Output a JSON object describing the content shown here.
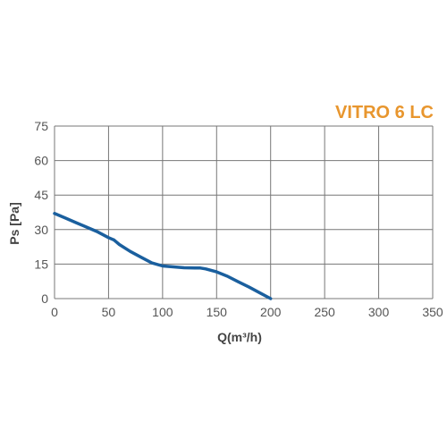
{
  "chart_data": {
    "type": "line",
    "title": "VITRO 6 LC",
    "xlabel": "Q(m³/h)",
    "ylabel": "Ps [Pa]",
    "xlim": [
      0,
      350
    ],
    "ylim": [
      0,
      75
    ],
    "xticks": [
      0,
      50,
      100,
      150,
      200,
      250,
      300,
      350
    ],
    "yticks": [
      0,
      15,
      30,
      45,
      60,
      75
    ],
    "grid": true,
    "colors": {
      "title": "#e8962e",
      "line": "#1a5f9e",
      "grid": "#777777",
      "text": "#555555"
    },
    "series": [
      {
        "x": [
          0,
          10,
          20,
          30,
          40,
          50,
          55,
          60,
          70,
          80,
          90,
          100,
          110,
          120,
          130,
          135,
          140,
          150,
          160,
          170,
          180,
          190,
          200
        ],
        "y": [
          37,
          35,
          33,
          31,
          29,
          26.5,
          25.5,
          23.5,
          20.5,
          18,
          15.5,
          14.2,
          13.8,
          13.4,
          13.3,
          13.3,
          12.9,
          11.6,
          9.7,
          7.3,
          5,
          2.5,
          0
        ]
      }
    ]
  }
}
